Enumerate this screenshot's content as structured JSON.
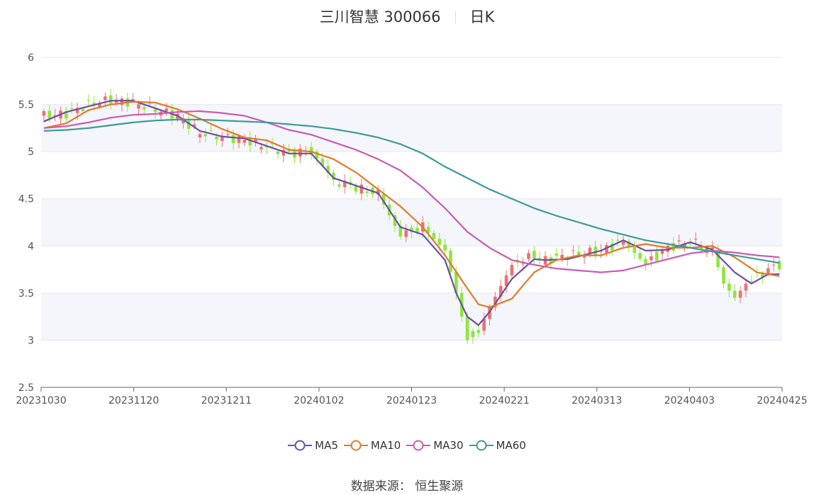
{
  "header": {
    "title": "三川智慧 300066",
    "period": "日K"
  },
  "footer": {
    "source_label": "数据来源：",
    "source_value": "恒生聚源"
  },
  "legend": [
    {
      "name": "MA5",
      "color": "#6a4fa8"
    },
    {
      "name": "MA10",
      "color": "#e07b2a"
    },
    {
      "name": "MA30",
      "color": "#c95ab6"
    },
    {
      "name": "MA60",
      "color": "#3e9a9a"
    }
  ],
  "colors": {
    "up": "#f07070",
    "down": "#8ee63c",
    "grid": "#e4e6f2",
    "band": "#f5f6fb"
  },
  "chart_data": {
    "type": "candlestick",
    "ylim": [
      2.5,
      6
    ],
    "yticks": [
      2.5,
      3,
      3.5,
      4,
      4.5,
      5,
      5.5,
      6
    ],
    "xticks": [
      "20231030",
      "20231120",
      "20231211",
      "20240102",
      "20240123",
      "20240221",
      "20240313",
      "20240403",
      "20240425"
    ],
    "ma_anchors": {
      "MA5": [
        [
          0,
          5.32
        ],
        [
          4,
          5.42
        ],
        [
          8,
          5.48
        ],
        [
          12,
          5.54
        ],
        [
          16,
          5.54
        ],
        [
          20,
          5.46
        ],
        [
          24,
          5.38
        ],
        [
          28,
          5.22
        ],
        [
          32,
          5.16
        ],
        [
          36,
          5.14
        ],
        [
          40,
          5.06
        ],
        [
          44,
          4.98
        ],
        [
          48,
          4.98
        ],
        [
          52,
          4.72
        ],
        [
          56,
          4.64
        ],
        [
          60,
          4.56
        ],
        [
          64,
          4.2
        ],
        [
          68,
          4.12
        ],
        [
          72,
          3.85
        ],
        [
          74,
          3.5
        ],
        [
          76,
          3.25
        ],
        [
          78,
          3.16
        ],
        [
          80,
          3.3
        ],
        [
          84,
          3.65
        ],
        [
          88,
          3.86
        ],
        [
          90,
          3.85
        ],
        [
          94,
          3.86
        ],
        [
          100,
          3.95
        ],
        [
          104,
          4.06
        ],
        [
          108,
          3.95
        ],
        [
          112,
          3.96
        ],
        [
          116,
          4.04
        ],
        [
          120,
          3.96
        ],
        [
          124,
          3.72
        ],
        [
          127,
          3.6
        ],
        [
          130,
          3.7
        ],
        [
          132,
          3.7
        ]
      ],
      "MA10": [
        [
          0,
          5.25
        ],
        [
          4,
          5.3
        ],
        [
          8,
          5.44
        ],
        [
          12,
          5.5
        ],
        [
          16,
          5.53
        ],
        [
          20,
          5.52
        ],
        [
          24,
          5.45
        ],
        [
          28,
          5.35
        ],
        [
          32,
          5.24
        ],
        [
          36,
          5.15
        ],
        [
          40,
          5.12
        ],
        [
          44,
          5.02
        ],
        [
          48,
          5.0
        ],
        [
          52,
          4.92
        ],
        [
          56,
          4.78
        ],
        [
          60,
          4.6
        ],
        [
          64,
          4.42
        ],
        [
          68,
          4.2
        ],
        [
          72,
          3.9
        ],
        [
          76,
          3.55
        ],
        [
          78,
          3.38
        ],
        [
          80,
          3.35
        ],
        [
          84,
          3.44
        ],
        [
          88,
          3.72
        ],
        [
          92,
          3.85
        ],
        [
          96,
          3.9
        ],
        [
          100,
          3.9
        ],
        [
          104,
          3.98
        ],
        [
          108,
          4.02
        ],
        [
          112,
          3.98
        ],
        [
          116,
          3.98
        ],
        [
          120,
          4.0
        ],
        [
          124,
          3.88
        ],
        [
          128,
          3.72
        ],
        [
          132,
          3.68
        ]
      ],
      "MA30": [
        [
          0,
          5.25
        ],
        [
          4,
          5.27
        ],
        [
          8,
          5.31
        ],
        [
          12,
          5.36
        ],
        [
          16,
          5.39
        ],
        [
          20,
          5.4
        ],
        [
          24,
          5.42
        ],
        [
          28,
          5.43
        ],
        [
          32,
          5.41
        ],
        [
          36,
          5.38
        ],
        [
          40,
          5.31
        ],
        [
          44,
          5.23
        ],
        [
          48,
          5.18
        ],
        [
          52,
          5.1
        ],
        [
          56,
          5.02
        ],
        [
          60,
          4.92
        ],
        [
          64,
          4.8
        ],
        [
          68,
          4.62
        ],
        [
          72,
          4.4
        ],
        [
          76,
          4.15
        ],
        [
          80,
          3.98
        ],
        [
          84,
          3.85
        ],
        [
          88,
          3.8
        ],
        [
          92,
          3.76
        ],
        [
          96,
          3.74
        ],
        [
          100,
          3.72
        ],
        [
          104,
          3.74
        ],
        [
          108,
          3.8
        ],
        [
          112,
          3.86
        ],
        [
          116,
          3.92
        ],
        [
          120,
          3.95
        ],
        [
          124,
          3.93
        ],
        [
          128,
          3.9
        ],
        [
          132,
          3.88
        ]
      ],
      "MA60": [
        [
          0,
          5.22
        ],
        [
          4,
          5.23
        ],
        [
          8,
          5.25
        ],
        [
          12,
          5.28
        ],
        [
          16,
          5.31
        ],
        [
          20,
          5.33
        ],
        [
          24,
          5.34
        ],
        [
          28,
          5.34
        ],
        [
          32,
          5.33
        ],
        [
          36,
          5.32
        ],
        [
          40,
          5.31
        ],
        [
          44,
          5.29
        ],
        [
          48,
          5.27
        ],
        [
          52,
          5.24
        ],
        [
          56,
          5.2
        ],
        [
          60,
          5.15
        ],
        [
          64,
          5.08
        ],
        [
          68,
          4.98
        ],
        [
          72,
          4.84
        ],
        [
          76,
          4.72
        ],
        [
          80,
          4.6
        ],
        [
          84,
          4.5
        ],
        [
          88,
          4.4
        ],
        [
          92,
          4.32
        ],
        [
          96,
          4.25
        ],
        [
          100,
          4.18
        ],
        [
          104,
          4.12
        ],
        [
          108,
          4.06
        ],
        [
          112,
          4.02
        ],
        [
          116,
          3.98
        ],
        [
          120,
          3.94
        ],
        [
          124,
          3.9
        ],
        [
          128,
          3.86
        ],
        [
          132,
          3.82
        ]
      ]
    },
    "candle_anchors": [
      [
        0,
        5.38
      ],
      [
        4,
        5.4
      ],
      [
        8,
        5.5
      ],
      [
        12,
        5.55
      ],
      [
        16,
        5.52
      ],
      [
        20,
        5.45
      ],
      [
        24,
        5.38
      ],
      [
        28,
        5.2
      ],
      [
        32,
        5.16
      ],
      [
        36,
        5.12
      ],
      [
        40,
        5.06
      ],
      [
        44,
        4.98
      ],
      [
        48,
        5.0
      ],
      [
        52,
        4.7
      ],
      [
        56,
        4.62
      ],
      [
        60,
        4.55
      ],
      [
        64,
        4.1
      ],
      [
        68,
        4.2
      ],
      [
        72,
        3.95
      ],
      [
        74,
        3.5
      ],
      [
        76,
        3.0
      ],
      [
        78,
        3.1
      ],
      [
        80,
        3.35
      ],
      [
        84,
        3.8
      ],
      [
        88,
        3.9
      ],
      [
        90,
        3.85
      ],
      [
        94,
        3.9
      ],
      [
        100,
        3.95
      ],
      [
        104,
        4.05
      ],
      [
        108,
        3.8
      ],
      [
        112,
        3.98
      ],
      [
        116,
        4.05
      ],
      [
        120,
        3.95
      ],
      [
        122,
        3.6
      ],
      [
        124,
        3.45
      ],
      [
        126,
        3.6
      ],
      [
        130,
        3.75
      ],
      [
        132,
        3.8
      ]
    ]
  }
}
